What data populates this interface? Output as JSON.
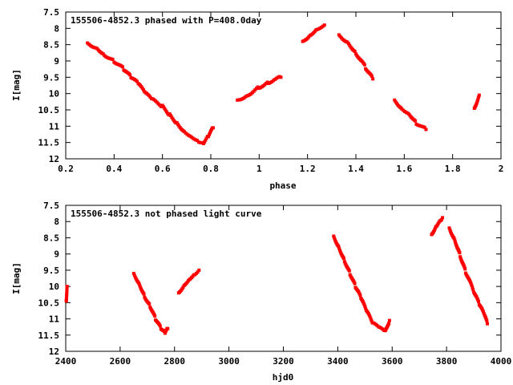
{
  "chart_data": [
    {
      "type": "scatter",
      "title": "155506-4852.3 phased with P=408.0day",
      "xlabel": "phase",
      "ylabel": "I[mag]",
      "xlim": [
        0.2,
        2.0
      ],
      "ylim": [
        7.5,
        12
      ],
      "y_inverted": true,
      "xticks": [
        "0.2",
        "0.4",
        "0.6",
        "0.8",
        "1",
        "1.2",
        "1.4",
        "1.6",
        "1.8",
        "2"
      ],
      "yticks": [
        "7.5",
        "8",
        "8.5",
        "9",
        "9.5",
        "10",
        "10.5",
        "11",
        "11.5",
        "12"
      ],
      "marker_color": "#ff0000",
      "segments": [
        [
          [
            0.29,
            8.45
          ],
          [
            0.33,
            8.6
          ],
          [
            0.36,
            8.8
          ],
          [
            0.4,
            9.0
          ],
          [
            0.44,
            9.25
          ],
          [
            0.47,
            9.5
          ],
          [
            0.5,
            9.7
          ],
          [
            0.53,
            10.0
          ],
          [
            0.56,
            10.2
          ],
          [
            0.6,
            10.4
          ],
          [
            0.63,
            10.65
          ],
          [
            0.66,
            10.9
          ],
          [
            0.69,
            11.15
          ],
          [
            0.72,
            11.3
          ],
          [
            0.75,
            11.45
          ],
          [
            0.77,
            11.5
          ],
          [
            0.79,
            11.3
          ],
          [
            0.81,
            11.05
          ]
        ],
        [
          [
            0.91,
            10.2
          ],
          [
            0.95,
            10.05
          ],
          [
            1.0,
            9.8
          ],
          [
            1.04,
            9.65
          ],
          [
            1.09,
            9.5
          ]
        ],
        [
          [
            1.18,
            8.4
          ],
          [
            1.21,
            8.2
          ],
          [
            1.24,
            8.0
          ],
          [
            1.27,
            7.9
          ]
        ],
        [
          [
            1.33,
            8.2
          ],
          [
            1.37,
            8.45
          ],
          [
            1.4,
            8.75
          ],
          [
            1.44,
            9.2
          ],
          [
            1.47,
            9.55
          ]
        ],
        [
          [
            1.56,
            10.2
          ],
          [
            1.59,
            10.45
          ],
          [
            1.62,
            10.6
          ],
          [
            1.65,
            10.9
          ],
          [
            1.69,
            11.1
          ]
        ],
        [
          [
            1.89,
            10.45
          ],
          [
            1.91,
            10.05
          ]
        ]
      ]
    },
    {
      "type": "scatter",
      "title": "155506-4852.3 not phased light curve",
      "xlabel": "hjd0",
      "ylabel": "I[mag]",
      "xlim": [
        2400,
        4000
      ],
      "ylim": [
        7.5,
        12
      ],
      "y_inverted": true,
      "xticks": [
        "2400",
        "2600",
        "2800",
        "3000",
        "3200",
        "3400",
        "3600",
        "3800",
        "4000"
      ],
      "yticks": [
        "7.5",
        "8",
        "8.5",
        "9",
        "9.5",
        "10",
        "10.5",
        "11",
        "11.5",
        "12"
      ],
      "marker_color": "#ff0000",
      "segments": [
        [
          [
            2402,
            10.45
          ],
          [
            2405,
            10.0
          ]
        ],
        [
          [
            2650,
            9.6
          ],
          [
            2670,
            9.9
          ],
          [
            2690,
            10.3
          ],
          [
            2710,
            10.6
          ],
          [
            2730,
            11.0
          ],
          [
            2750,
            11.3
          ],
          [
            2765,
            11.45
          ],
          [
            2775,
            11.3
          ]
        ],
        [
          [
            2815,
            10.2
          ],
          [
            2835,
            9.95
          ],
          [
            2855,
            9.75
          ],
          [
            2875,
            9.6
          ],
          [
            2890,
            9.5
          ]
        ],
        [
          [
            3385,
            8.45
          ],
          [
            3405,
            8.8
          ],
          [
            3425,
            9.2
          ],
          [
            3445,
            9.6
          ],
          [
            3465,
            10.0
          ],
          [
            3485,
            10.35
          ],
          [
            3505,
            10.75
          ],
          [
            3530,
            11.15
          ],
          [
            3555,
            11.3
          ],
          [
            3575,
            11.4
          ],
          [
            3590,
            11.05
          ]
        ],
        [
          [
            3745,
            8.4
          ],
          [
            3760,
            8.15
          ],
          [
            3775,
            7.95
          ],
          [
            3785,
            7.88
          ]
        ],
        [
          [
            3810,
            8.2
          ],
          [
            3830,
            8.55
          ],
          [
            3850,
            9.05
          ],
          [
            3870,
            9.55
          ],
          [
            3900,
            10.15
          ],
          [
            3920,
            10.55
          ],
          [
            3940,
            10.9
          ],
          [
            3950,
            11.15
          ]
        ]
      ]
    }
  ]
}
